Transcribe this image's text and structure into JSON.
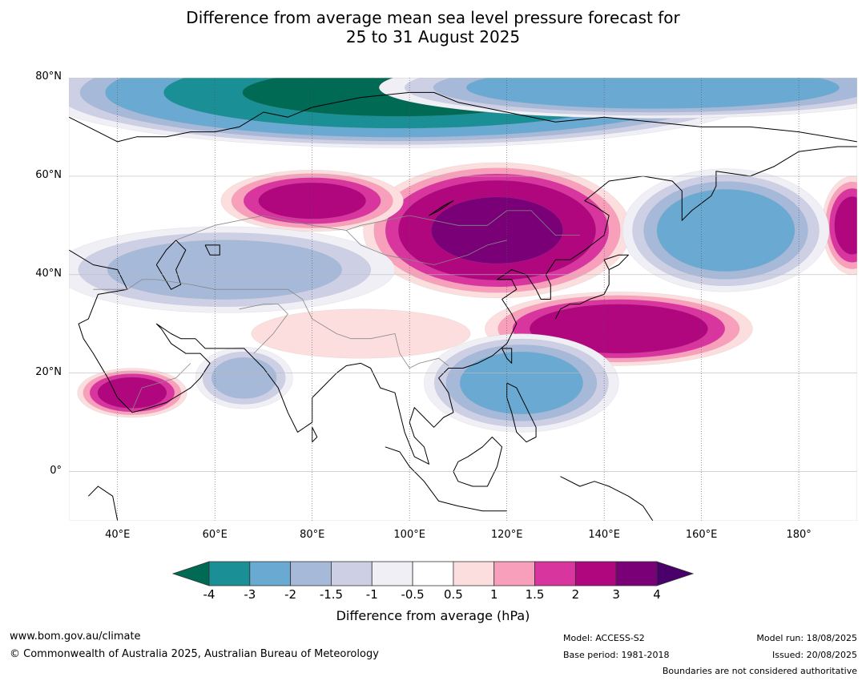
{
  "title": {
    "line1": "Difference from average mean sea level pressure forecast for",
    "line2": "25 to 31 August 2025"
  },
  "map": {
    "extent": {
      "lon_min": 30,
      "lon_max": 192,
      "lat_min": -10,
      "lat_max": 80
    },
    "lat_labels": [
      {
        "lat": 80,
        "text": "80°N"
      },
      {
        "lat": 60,
        "text": "60°N"
      },
      {
        "lat": 40,
        "text": "40°N"
      },
      {
        "lat": 20,
        "text": "20°N"
      },
      {
        "lat": 0,
        "text": "0°"
      }
    ],
    "lon_labels": [
      {
        "lon": 40,
        "text": "40°E"
      },
      {
        "lon": 60,
        "text": "60°E"
      },
      {
        "lon": 80,
        "text": "80°E"
      },
      {
        "lon": 100,
        "text": "100°E"
      },
      {
        "lon": 120,
        "text": "120°E"
      },
      {
        "lon": 140,
        "text": "140°E"
      },
      {
        "lon": 160,
        "text": "160°E"
      },
      {
        "lon": 180,
        "text": "180°"
      }
    ],
    "anomalies": [
      {
        "name": "arctic-low",
        "lon": 98,
        "lat": 77,
        "rlon": 60,
        "rlat": 9,
        "value": -4
      },
      {
        "name": "arctic-low-east",
        "lon": 150,
        "lat": 78,
        "rlon": 45,
        "rlat": 5,
        "value": -2.5
      },
      {
        "name": "mongolia-high",
        "lon": 118,
        "lat": 49,
        "rlon": 22,
        "rlat": 11,
        "value": 3
      },
      {
        "name": "kazakh-high",
        "lon": 80,
        "lat": 55,
        "rlon": 15,
        "rlat": 5,
        "value": 2
      },
      {
        "name": "japan-high",
        "lon": 143,
        "lat": 29,
        "rlon": 22,
        "rlat": 6,
        "value": 2.4
      },
      {
        "name": "arabia-high",
        "lon": 43,
        "lat": 16,
        "rlon": 9,
        "rlat": 4,
        "value": 2.2
      },
      {
        "name": "bering-high",
        "lon": 191,
        "lat": 50,
        "rlon": 5,
        "rlat": 8,
        "value": 2
      },
      {
        "name": "okhotsk-low",
        "lon": 165,
        "lat": 49,
        "rlon": 17,
        "rlat": 10,
        "value": -2.4
      },
      {
        "name": "scs-low",
        "lon": 123,
        "lat": 18,
        "rlon": 16,
        "rlat": 8,
        "value": -2.2
      },
      {
        "name": "central-asia-low",
        "lon": 62,
        "lat": 41,
        "rlon": 28,
        "rlat": 7,
        "value": -1.6
      },
      {
        "name": "arabian-sea-low",
        "lon": 66,
        "lat": 19,
        "rlon": 8,
        "rlat": 5,
        "value": -1.5
      },
      {
        "name": "india-high",
        "lon": 90,
        "lat": 28,
        "rlon": 18,
        "rlat": 4,
        "value": 0.9
      }
    ]
  },
  "colorbar": {
    "ticks": [
      "-4",
      "-3",
      "-2",
      "-1.5",
      "-1",
      "-0.5",
      "0.5",
      "1",
      "1.5",
      "2",
      "3",
      "4"
    ],
    "colors": [
      "#1a8f96",
      "#6aaad2",
      "#a6b9d8",
      "#cdd0e5",
      "#f1eff6",
      "#ffffff",
      "#fddede",
      "#f89fbb",
      "#d8359e",
      "#b0067e",
      "#7a0077"
    ],
    "under_color": "#006a55",
    "over_color": "#49006a",
    "label": "Difference from average (hPa)"
  },
  "footer": {
    "url": "www.bom.gov.au/climate",
    "copyright": "© Commonwealth of Australia 2025, Australian Bureau of Meteorology",
    "model": "Model: ACCESS-S2",
    "base_period": "Base period: 1981-2018",
    "model_run": "Model run: 18/08/2025",
    "issued": "Issued: 20/08/2025",
    "boundaries": "Boundaries are not considered authoritative"
  }
}
